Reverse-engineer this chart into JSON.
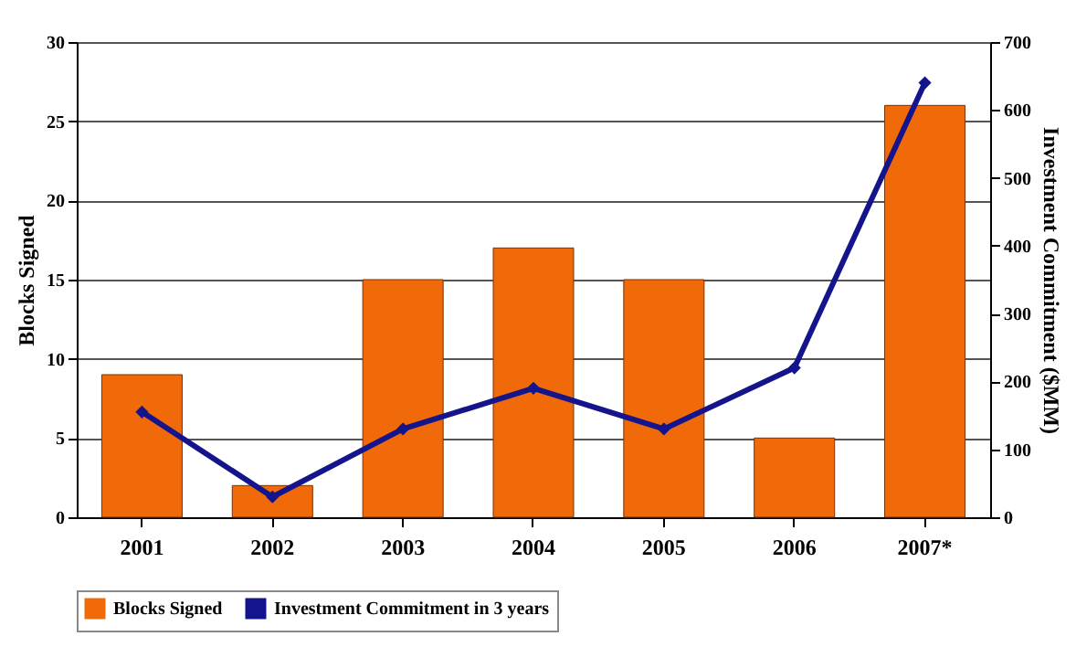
{
  "chart_data": {
    "type": "bar",
    "ylabel": "Blocks Signed",
    "y2label": "Investment Commitment ($MM)",
    "categories": [
      "2001",
      "2002",
      "2003",
      "2004",
      "2005",
      "2006",
      "2007*"
    ],
    "series": [
      {
        "name": "Blocks Signed",
        "color": "#f06a0a",
        "values": [
          9,
          2,
          15,
          17,
          15,
          5,
          26
        ]
      },
      {
        "name": "Investment Commitment in 3 years",
        "type": "line",
        "axis": "y2",
        "color": "#14148c",
        "marker": "diamond",
        "values": [
          155,
          30,
          130,
          190,
          130,
          220,
          640
        ]
      }
    ],
    "ylim": [
      0,
      30
    ],
    "yticks": [
      0,
      5,
      10,
      15,
      20,
      25,
      30
    ],
    "y2lim": [
      0,
      700
    ],
    "y2ticks": [
      0,
      100,
      200,
      300,
      400,
      500,
      600,
      700
    ],
    "grid": "y",
    "legend": "bottom"
  }
}
